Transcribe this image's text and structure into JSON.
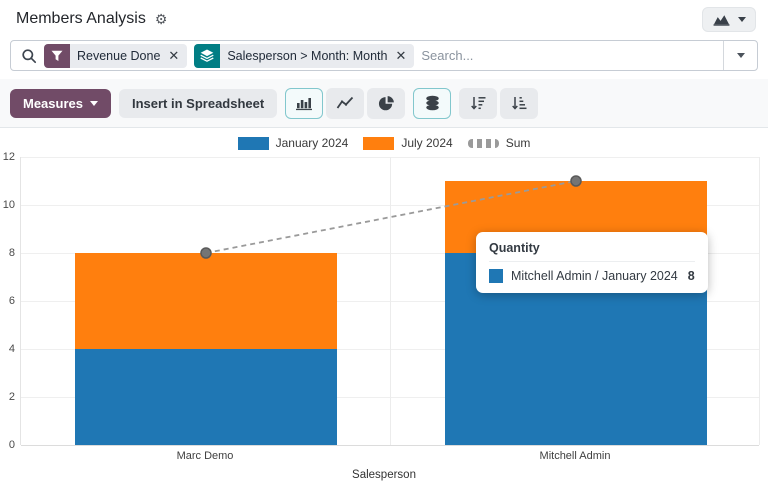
{
  "app": {
    "title": "Members Analysis"
  },
  "search": {
    "placeholder": "Search...",
    "facets": [
      {
        "kind": "filter",
        "label": "Revenue Done",
        "icon": "filter-icon",
        "icon_bg": "#714B67"
      },
      {
        "kind": "groupby",
        "label": "Salesperson > Month: Month",
        "icon": "layers-icon",
        "icon_bg": "#017e84"
      }
    ]
  },
  "toolbar": {
    "measures_label": "Measures",
    "insert_label": "Insert in Spreadsheet",
    "chart_buttons": [
      {
        "name": "bar-chart-button",
        "active": true
      },
      {
        "name": "line-chart-button",
        "active": false
      },
      {
        "name": "pie-chart-button",
        "active": false
      },
      {
        "name": "stacked-button",
        "active": true
      },
      {
        "name": "sort-desc-button",
        "active": false
      },
      {
        "name": "sort-asc-button",
        "active": false
      }
    ]
  },
  "chart_data": {
    "type": "bar",
    "stacked": true,
    "categories": [
      "Marc Demo",
      "Mitchell Admin"
    ],
    "series": [
      {
        "name": "January 2024",
        "color": "#1f77b4",
        "values": [
          4,
          8
        ]
      },
      {
        "name": "July 2024",
        "color": "#ff7f0e",
        "values": [
          4,
          3
        ]
      }
    ],
    "sum_line": {
      "name": "Sum",
      "values": [
        8,
        11
      ],
      "color": "#9a9a9a",
      "dot_color": "#757575",
      "style": "dashed"
    },
    "xlabel": "Salesperson",
    "ylim": [
      0,
      12
    ],
    "yticks": [
      0,
      2,
      4,
      6,
      8,
      10,
      12
    ],
    "legend_position": "top",
    "grid": true
  },
  "tooltip": {
    "title": "Quantity",
    "rows": [
      {
        "color": "#1f77b4",
        "label": "Mitchell Admin / January 2024",
        "value": "8"
      }
    ]
  },
  "colors": {
    "accent": "#714B67",
    "groupby_teal": "#017e84",
    "active_border": "#82c7cd"
  }
}
